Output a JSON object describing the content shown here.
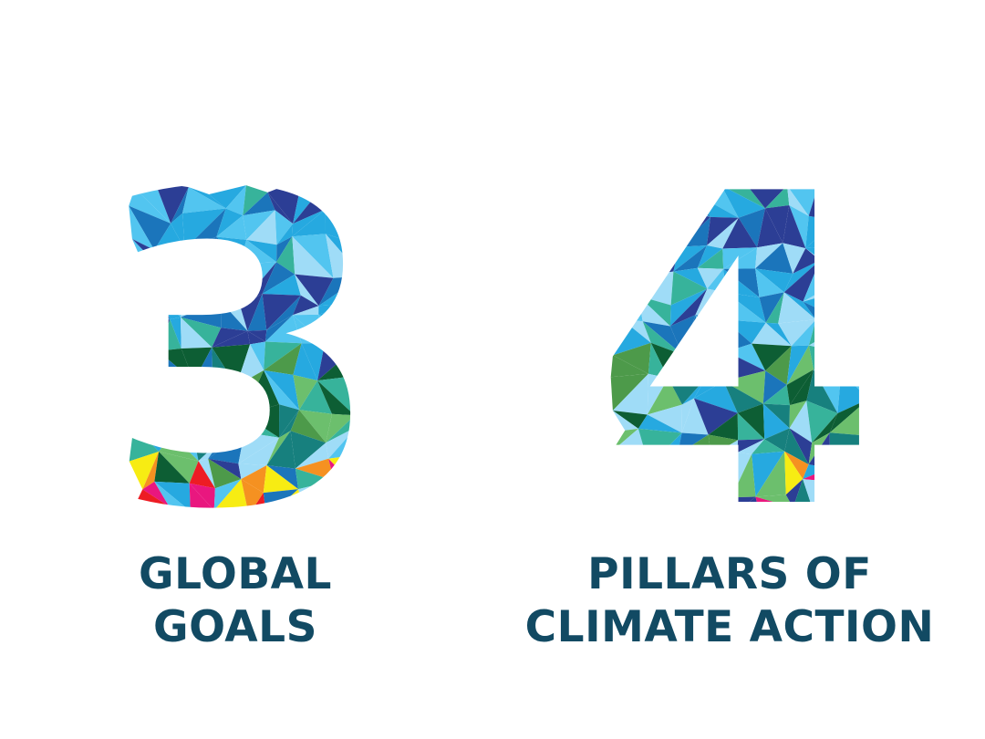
{
  "stats": [
    {
      "number": "3",
      "label_line1": "GLOBAL",
      "label_line2": "GOALS"
    },
    {
      "number": "4",
      "label_line1": "PILLARS OF",
      "label_line2": "CLIMATE ACTION"
    }
  ],
  "colors": {
    "label_text": "#124a63",
    "mosaic_palette": [
      "#26a9e0",
      "#52c5f0",
      "#9fdcf7",
      "#1b75bb",
      "#2c3e95",
      "#17807e",
      "#37b39b",
      "#6cbf6d",
      "#4d9a4a",
      "#0d5e34",
      "#f7ec13",
      "#f59121",
      "#ed1c24",
      "#e9177f"
    ]
  }
}
